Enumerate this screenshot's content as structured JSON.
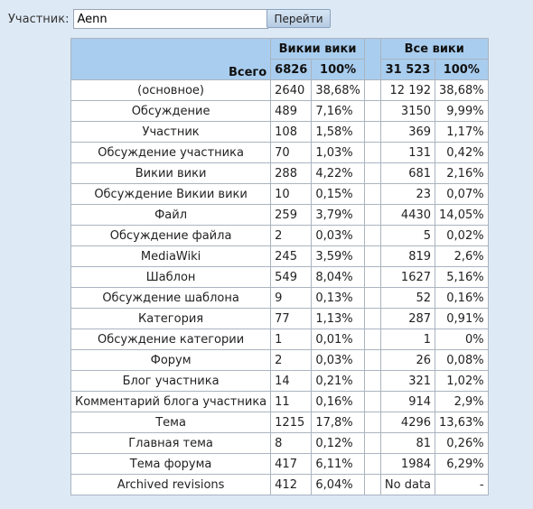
{
  "search": {
    "label": "Участник:",
    "value": "Aenn",
    "button": "Перейти"
  },
  "table": {
    "group1": "Викии вики",
    "group2": "Все вики",
    "total_label": "Всего",
    "total1": "6826",
    "total1_pct": "100%",
    "total2": "31 523",
    "total2_pct": "100%",
    "rows": [
      {
        "name": "(основное)",
        "n1": "2640",
        "p1": "38,68%",
        "n2": "12 192",
        "p2": "38,68%"
      },
      {
        "name": "Обсуждение",
        "n1": "489",
        "p1": "7,16%",
        "n2": "3150",
        "p2": "9,99%"
      },
      {
        "name": "Участник",
        "n1": "108",
        "p1": "1,58%",
        "n2": "369",
        "p2": "1,17%"
      },
      {
        "name": "Обсуждение участника",
        "n1": "70",
        "p1": "1,03%",
        "n2": "131",
        "p2": "0,42%"
      },
      {
        "name": "Викии вики",
        "n1": "288",
        "p1": "4,22%",
        "n2": "681",
        "p2": "2,16%"
      },
      {
        "name": "Обсуждение Викии вики",
        "n1": "10",
        "p1": "0,15%",
        "n2": "23",
        "p2": "0,07%"
      },
      {
        "name": "Файл",
        "n1": "259",
        "p1": "3,79%",
        "n2": "4430",
        "p2": "14,05%"
      },
      {
        "name": "Обсуждение файла",
        "n1": "2",
        "p1": "0,03%",
        "n2": "5",
        "p2": "0,02%"
      },
      {
        "name": "MediaWiki",
        "n1": "245",
        "p1": "3,59%",
        "n2": "819",
        "p2": "2,6%"
      },
      {
        "name": "Шаблон",
        "n1": "549",
        "p1": "8,04%",
        "n2": "1627",
        "p2": "5,16%"
      },
      {
        "name": "Обсуждение шаблона",
        "n1": "9",
        "p1": "0,13%",
        "n2": "52",
        "p2": "0,16%"
      },
      {
        "name": "Категория",
        "n1": "77",
        "p1": "1,13%",
        "n2": "287",
        "p2": "0,91%"
      },
      {
        "name": "Обсуждение категории",
        "n1": "1",
        "p1": "0,01%",
        "n2": "1",
        "p2": "0%"
      },
      {
        "name": "Форум",
        "n1": "2",
        "p1": "0,03%",
        "n2": "26",
        "p2": "0,08%"
      },
      {
        "name": "Блог участника",
        "n1": "14",
        "p1": "0,21%",
        "n2": "321",
        "p2": "1,02%"
      },
      {
        "name": "Комментарий блога участника",
        "n1": "11",
        "p1": "0,16%",
        "n2": "914",
        "p2": "2,9%"
      },
      {
        "name": "Тема",
        "n1": "1215",
        "p1": "17,8%",
        "n2": "4296",
        "p2": "13,63%"
      },
      {
        "name": "Главная тема",
        "n1": "8",
        "p1": "0,12%",
        "n2": "81",
        "p2": "0,26%"
      },
      {
        "name": "Тема форума",
        "n1": "417",
        "p1": "6,11%",
        "n2": "1984",
        "p2": "6,29%"
      },
      {
        "name": "Archived revisions",
        "n1": "412",
        "p1": "6,04%",
        "n2": "No data",
        "p2": "-"
      }
    ]
  }
}
